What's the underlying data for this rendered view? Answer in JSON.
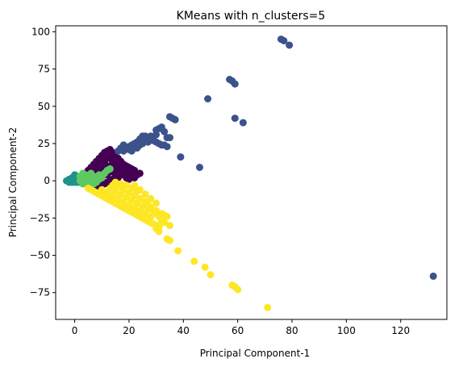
{
  "chart_data": {
    "type": "scatter",
    "title": "KMeans with n_clusters=5",
    "xlabel": "Principal Component-1",
    "ylabel": "Principal Component-2",
    "xlim": [
      -7,
      137
    ],
    "ylim": [
      -93,
      104
    ],
    "xticks": [
      0,
      20,
      40,
      60,
      80,
      100,
      120
    ],
    "yticks": [
      -75,
      -50,
      -25,
      0,
      25,
      50,
      75,
      100
    ],
    "grid": false,
    "legend": "none",
    "series": [
      {
        "color": "#440154",
        "points": [
          [
            3,
            2
          ],
          [
            4,
            5
          ],
          [
            5,
            7
          ],
          [
            6,
            9
          ],
          [
            7,
            11
          ],
          [
            8,
            13
          ],
          [
            9,
            15
          ],
          [
            10,
            17
          ],
          [
            11,
            19
          ],
          [
            12,
            20
          ],
          [
            13,
            21
          ],
          [
            14,
            19
          ],
          [
            15,
            17
          ],
          [
            16,
            15
          ],
          [
            17,
            13
          ],
          [
            18,
            11
          ],
          [
            19,
            10
          ],
          [
            20,
            9
          ],
          [
            21,
            8
          ],
          [
            22,
            7
          ],
          [
            5,
            -1
          ],
          [
            6,
            -3
          ],
          [
            7,
            -4
          ],
          [
            8,
            -5
          ],
          [
            9,
            -4
          ],
          [
            10,
            -3
          ],
          [
            11,
            -2
          ],
          [
            12,
            -1
          ],
          [
            13,
            0
          ],
          [
            14,
            1
          ],
          [
            15,
            3
          ],
          [
            16,
            5
          ],
          [
            17,
            6
          ],
          [
            18,
            4
          ],
          [
            19,
            2
          ],
          [
            20,
            1
          ],
          [
            8,
            6
          ],
          [
            10,
            8
          ],
          [
            12,
            10
          ],
          [
            14,
            12
          ],
          [
            16,
            10
          ],
          [
            18,
            8
          ],
          [
            11,
            13
          ],
          [
            13,
            15
          ],
          [
            15,
            14
          ],
          [
            9,
            10
          ],
          [
            7,
            4
          ],
          [
            6,
            2
          ],
          [
            10,
            1
          ],
          [
            12,
            4
          ],
          [
            14,
            6
          ],
          [
            16,
            2
          ],
          [
            18,
            6
          ],
          [
            20,
            4
          ],
          [
            22,
            2
          ],
          [
            4,
            1
          ],
          [
            9,
            -1
          ],
          [
            11,
            6
          ],
          [
            13,
            9
          ],
          [
            15,
            8
          ],
          [
            17,
            9
          ],
          [
            19,
            7
          ],
          [
            21,
            5
          ],
          [
            23,
            4
          ],
          [
            24,
            5
          ],
          [
            12,
            16
          ],
          [
            10,
            12
          ],
          [
            8,
            8
          ]
        ]
      },
      {
        "color": "#3b528b",
        "points": [
          [
            76,
            95
          ],
          [
            77,
            94
          ],
          [
            79,
            91
          ],
          [
            57,
            68
          ],
          [
            58,
            67
          ],
          [
            59,
            65
          ],
          [
            49,
            55
          ],
          [
            59,
            42
          ],
          [
            62,
            39
          ],
          [
            35,
            43
          ],
          [
            36,
            42
          ],
          [
            37,
            41
          ],
          [
            30,
            34
          ],
          [
            31,
            35
          ],
          [
            32,
            36
          ],
          [
            33,
            33
          ],
          [
            34,
            29
          ],
          [
            35,
            29
          ],
          [
            28,
            28
          ],
          [
            29,
            27
          ],
          [
            30,
            26
          ],
          [
            31,
            25
          ],
          [
            32,
            24
          ],
          [
            33,
            24
          ],
          [
            34,
            23
          ],
          [
            27,
            29
          ],
          [
            26,
            30
          ],
          [
            25,
            30
          ],
          [
            24,
            28
          ],
          [
            23,
            26
          ],
          [
            22,
            25
          ],
          [
            21,
            24
          ],
          [
            20,
            23
          ],
          [
            19,
            22
          ],
          [
            18,
            24
          ],
          [
            17,
            22
          ],
          [
            16,
            20
          ],
          [
            18,
            20
          ],
          [
            20,
            21
          ],
          [
            22,
            22
          ],
          [
            24,
            24
          ],
          [
            26,
            27
          ],
          [
            25,
            25
          ],
          [
            27,
            26
          ],
          [
            23,
            22
          ],
          [
            21,
            20
          ],
          [
            39,
            16
          ],
          [
            46,
            9
          ],
          [
            132,
            -64
          ],
          [
            30,
            31
          ],
          [
            28,
            30
          ]
        ]
      },
      {
        "color": "#21918c",
        "points": [
          [
            -2,
            1
          ],
          [
            -1,
            2
          ],
          [
            0,
            3
          ],
          [
            1,
            2
          ],
          [
            2,
            1
          ],
          [
            3,
            0
          ],
          [
            -1,
            -1
          ],
          [
            0,
            -1
          ],
          [
            1,
            0
          ],
          [
            2,
            -1
          ],
          [
            -3,
            0
          ],
          [
            0,
            4
          ],
          [
            1,
            3
          ],
          [
            2,
            2
          ],
          [
            -2,
            -1
          ],
          [
            3,
            1
          ],
          [
            1,
            -1
          ],
          [
            -1,
            0
          ],
          [
            0,
            1
          ],
          [
            2,
            3
          ],
          [
            1,
            1
          ],
          [
            -2,
            0
          ]
        ]
      },
      {
        "color": "#5ec962",
        "points": [
          [
            3,
            5
          ],
          [
            4,
            4
          ],
          [
            5,
            3
          ],
          [
            6,
            2
          ],
          [
            7,
            1
          ],
          [
            8,
            0
          ],
          [
            9,
            1
          ],
          [
            10,
            3
          ],
          [
            11,
            5
          ],
          [
            12,
            7
          ],
          [
            13,
            8
          ],
          [
            4,
            -1
          ],
          [
            5,
            -2
          ],
          [
            6,
            -3
          ],
          [
            7,
            -2
          ],
          [
            8,
            -1
          ],
          [
            2,
            3
          ],
          [
            3,
            4
          ],
          [
            6,
            5
          ],
          [
            9,
            4
          ],
          [
            10,
            2
          ],
          [
            4,
            2
          ],
          [
            5,
            1
          ],
          [
            7,
            3
          ],
          [
            2,
            0
          ],
          [
            3,
            -2
          ]
        ]
      },
      {
        "color": "#fde725",
        "points": [
          [
            5,
            -5
          ],
          [
            6,
            -6
          ],
          [
            7,
            -7
          ],
          [
            8,
            -8
          ],
          [
            9,
            -9
          ],
          [
            10,
            -10
          ],
          [
            11,
            -11
          ],
          [
            12,
            -12
          ],
          [
            13,
            -13
          ],
          [
            14,
            -14
          ],
          [
            15,
            -15
          ],
          [
            16,
            -16
          ],
          [
            17,
            -17
          ],
          [
            18,
            -18
          ],
          [
            19,
            -19
          ],
          [
            20,
            -20
          ],
          [
            21,
            -21
          ],
          [
            22,
            -22
          ],
          [
            23,
            -23
          ],
          [
            24,
            -24
          ],
          [
            25,
            -25
          ],
          [
            26,
            -26
          ],
          [
            27,
            -27
          ],
          [
            28,
            -28
          ],
          [
            29,
            -29
          ],
          [
            30,
            -30
          ],
          [
            31,
            -31
          ],
          [
            12,
            -8
          ],
          [
            14,
            -10
          ],
          [
            16,
            -12
          ],
          [
            18,
            -14
          ],
          [
            20,
            -16
          ],
          [
            22,
            -18
          ],
          [
            24,
            -20
          ],
          [
            26,
            -22
          ],
          [
            28,
            -24
          ],
          [
            10,
            -6
          ],
          [
            13,
            -5
          ],
          [
            15,
            -7
          ],
          [
            17,
            -9
          ],
          [
            19,
            -11
          ],
          [
            21,
            -13
          ],
          [
            23,
            -15
          ],
          [
            25,
            -17
          ],
          [
            27,
            -19
          ],
          [
            14,
            -3
          ],
          [
            16,
            -4
          ],
          [
            18,
            -6
          ],
          [
            20,
            -8
          ],
          [
            22,
            -10
          ],
          [
            24,
            -12
          ],
          [
            26,
            -14
          ],
          [
            15,
            -1
          ],
          [
            17,
            -2
          ],
          [
            19,
            -3
          ],
          [
            21,
            -5
          ],
          [
            23,
            -7
          ],
          [
            22,
            -3
          ],
          [
            24,
            -6
          ],
          [
            26,
            -9
          ],
          [
            28,
            -12
          ],
          [
            30,
            -15
          ],
          [
            32,
            -22
          ],
          [
            34,
            -24
          ],
          [
            30,
            -20
          ],
          [
            28,
            -18
          ],
          [
            33,
            -28
          ],
          [
            35,
            -30
          ],
          [
            32,
            -27
          ],
          [
            31,
            -24
          ],
          [
            29,
            -22
          ],
          [
            27,
            -16
          ],
          [
            33,
            -23
          ],
          [
            34,
            -39
          ],
          [
            35,
            -40
          ],
          [
            30,
            -32
          ],
          [
            31,
            -34
          ],
          [
            38,
            -47
          ],
          [
            44,
            -54
          ],
          [
            48,
            -58
          ],
          [
            50,
            -63
          ],
          [
            58,
            -70
          ],
          [
            59,
            -71
          ],
          [
            60,
            -73
          ],
          [
            71,
            -85
          ]
        ]
      }
    ]
  }
}
